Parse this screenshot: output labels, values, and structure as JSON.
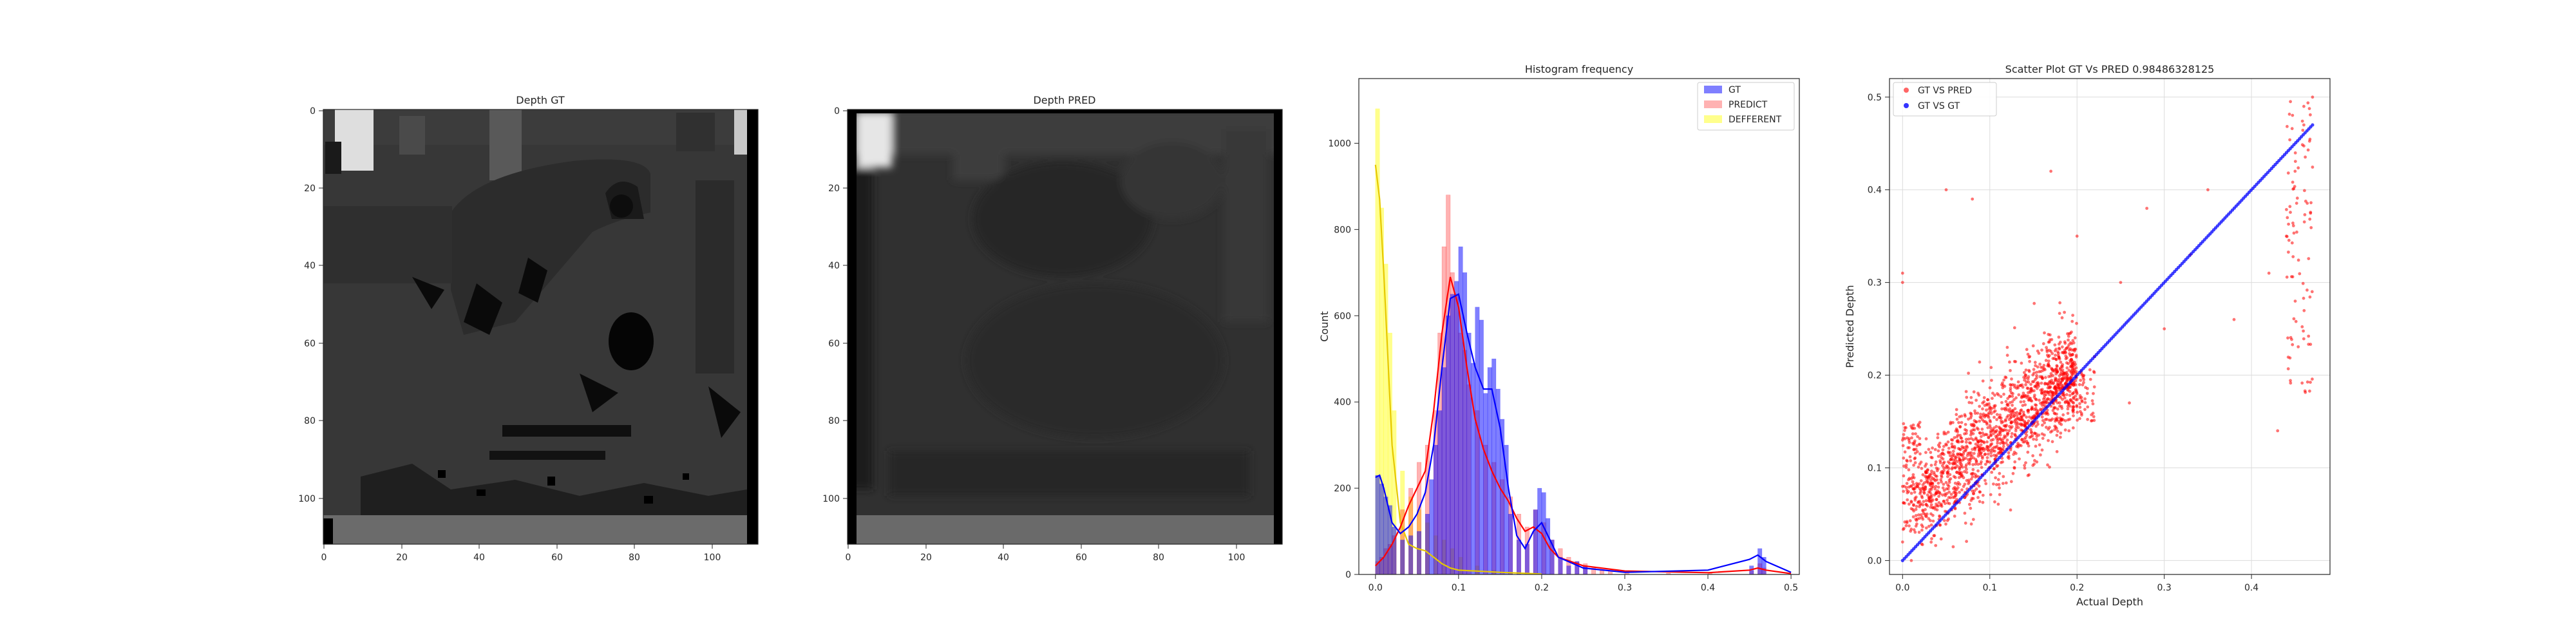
{
  "figure": {
    "panels": [
      "Depth GT",
      "Depth PRED",
      "Histogram frequency",
      "Scatter Plot GT Vs PRED 0.98486328125"
    ]
  },
  "chart_data": [
    {
      "type": "heatmap",
      "title": "Depth GT",
      "colormap": "gray",
      "xlim": [
        0,
        112
      ],
      "ylim": [
        112,
        0
      ],
      "xticks": [
        "0",
        "20",
        "40",
        "60",
        "80",
        "100"
      ],
      "yticks": [
        "0",
        "20",
        "40",
        "60",
        "80",
        "100"
      ],
      "regions": [
        {
          "name": "background",
          "value": 0.14
        },
        {
          "name": "bright-upper-left",
          "value": 0.46
        },
        {
          "name": "top-band",
          "value": 0.22
        },
        {
          "name": "center-object",
          "value": 0.17
        },
        {
          "name": "bottom-floor",
          "value": 0.27
        },
        {
          "name": "missing-depth",
          "value": 0.0
        }
      ]
    },
    {
      "type": "heatmap",
      "title": "Depth PRED",
      "colormap": "gray",
      "xlim": [
        0,
        112
      ],
      "ylim": [
        112,
        0
      ],
      "xticks": [
        "0",
        "20",
        "40",
        "60",
        "80",
        "100"
      ],
      "yticks": [
        "0",
        "20",
        "40",
        "60",
        "80",
        "100"
      ],
      "regions": [
        {
          "name": "background",
          "value": 0.12
        },
        {
          "name": "bright-upper-left",
          "value": 0.45
        },
        {
          "name": "bottom-floor",
          "value": 0.27
        }
      ]
    },
    {
      "type": "bar",
      "title": "Histogram frequency",
      "xlabel": "",
      "ylabel": "Count",
      "xlim": [
        -0.02,
        0.51
      ],
      "ylim": [
        0,
        1150
      ],
      "xticks": [
        "0.0",
        "0.1",
        "0.2",
        "0.3",
        "0.4",
        "0.5"
      ],
      "yticks": [
        "0",
        "200",
        "400",
        "600",
        "800",
        "1000"
      ],
      "bin_width": 0.005,
      "legend_position": "top-right",
      "series": [
        {
          "name": "GT",
          "color": "#0000ff",
          "bins_x": [
            0.0,
            0.005,
            0.01,
            0.015,
            0.02,
            0.03,
            0.04,
            0.05,
            0.06,
            0.065,
            0.07,
            0.075,
            0.08,
            0.085,
            0.09,
            0.095,
            0.1,
            0.105,
            0.11,
            0.115,
            0.12,
            0.125,
            0.13,
            0.135,
            0.14,
            0.145,
            0.15,
            0.155,
            0.16,
            0.17,
            0.18,
            0.19,
            0.195,
            0.2,
            0.205,
            0.21,
            0.22,
            0.23,
            0.24,
            0.25,
            0.45,
            0.46,
            0.465
          ],
          "counts": [
            230,
            210,
            180,
            160,
            110,
            80,
            90,
            100,
            140,
            220,
            300,
            380,
            480,
            600,
            650,
            680,
            760,
            700,
            560,
            490,
            620,
            590,
            420,
            480,
            500,
            430,
            360,
            300,
            140,
            80,
            70,
            150,
            200,
            190,
            130,
            80,
            40,
            20,
            30,
            20,
            20,
            60,
            40
          ],
          "kde": [
            [
              0,
              225
            ],
            [
              0.005,
              230
            ],
            [
              0.01,
              200
            ],
            [
              0.02,
              120
            ],
            [
              0.03,
              95
            ],
            [
              0.04,
              110
            ],
            [
              0.05,
              140
            ],
            [
              0.06,
              190
            ],
            [
              0.07,
              300
            ],
            [
              0.08,
              480
            ],
            [
              0.09,
              640
            ],
            [
              0.1,
              650
            ],
            [
              0.11,
              560
            ],
            [
              0.12,
              480
            ],
            [
              0.13,
              430
            ],
            [
              0.14,
              430
            ],
            [
              0.15,
              340
            ],
            [
              0.16,
              200
            ],
            [
              0.17,
              90
            ],
            [
              0.18,
              60
            ],
            [
              0.19,
              100
            ],
            [
              0.2,
              120
            ],
            [
              0.21,
              80
            ],
            [
              0.22,
              40
            ],
            [
              0.25,
              15
            ],
            [
              0.3,
              5
            ],
            [
              0.4,
              10
            ],
            [
              0.45,
              35
            ],
            [
              0.46,
              45
            ],
            [
              0.47,
              30
            ],
            [
              0.5,
              5
            ]
          ]
        },
        {
          "name": "PREDICT",
          "color": "#ff0000",
          "bins_x": [
            0.0,
            0.005,
            0.01,
            0.015,
            0.02,
            0.03,
            0.04,
            0.05,
            0.06,
            0.07,
            0.075,
            0.08,
            0.085,
            0.09,
            0.095,
            0.1,
            0.105,
            0.11,
            0.12,
            0.13,
            0.14,
            0.15,
            0.16,
            0.17,
            0.18,
            0.19,
            0.2,
            0.21,
            0.22,
            0.23,
            0.24,
            0.25,
            0.26,
            0.27,
            0.28,
            0.3,
            0.35,
            0.4,
            0.45,
            0.46,
            0.465
          ],
          "counts": [
            30,
            40,
            60,
            70,
            90,
            150,
            200,
            260,
            300,
            380,
            560,
            760,
            880,
            700,
            650,
            560,
            520,
            440,
            380,
            300,
            260,
            220,
            180,
            140,
            110,
            150,
            120,
            80,
            60,
            40,
            30,
            25,
            15,
            10,
            8,
            5,
            3,
            3,
            8,
            25,
            15
          ],
          "kde": [
            [
              0,
              20
            ],
            [
              0.01,
              40
            ],
            [
              0.02,
              70
            ],
            [
              0.03,
              110
            ],
            [
              0.04,
              160
            ],
            [
              0.05,
              200
            ],
            [
              0.06,
              240
            ],
            [
              0.07,
              380
            ],
            [
              0.08,
              560
            ],
            [
              0.09,
              690
            ],
            [
              0.1,
              620
            ],
            [
              0.11,
              480
            ],
            [
              0.12,
              360
            ],
            [
              0.13,
              290
            ],
            [
              0.14,
              240
            ],
            [
              0.15,
              200
            ],
            [
              0.16,
              170
            ],
            [
              0.17,
              130
            ],
            [
              0.18,
              100
            ],
            [
              0.19,
              110
            ],
            [
              0.2,
              95
            ],
            [
              0.21,
              60
            ],
            [
              0.22,
              40
            ],
            [
              0.25,
              20
            ],
            [
              0.3,
              8
            ],
            [
              0.4,
              4
            ],
            [
              0.45,
              10
            ],
            [
              0.46,
              15
            ],
            [
              0.47,
              10
            ],
            [
              0.5,
              2
            ]
          ]
        },
        {
          "name": "DEFFERENT",
          "color": "#ffff00",
          "bins_x": [
            0.0,
            0.005,
            0.01,
            0.015,
            0.02,
            0.03,
            0.04,
            0.05,
            0.06,
            0.07,
            0.08,
            0.09,
            0.1,
            0.12,
            0.14,
            0.16
          ],
          "counts": [
            1080,
            850,
            720,
            560,
            380,
            240,
            180,
            150,
            120,
            90,
            80,
            60,
            40,
            20,
            10,
            5
          ],
          "kde": [
            [
              0,
              950
            ],
            [
              0.005,
              870
            ],
            [
              0.01,
              700
            ],
            [
              0.015,
              500
            ],
            [
              0.02,
              300
            ],
            [
              0.03,
              120
            ],
            [
              0.04,
              70
            ],
            [
              0.05,
              60
            ],
            [
              0.06,
              55
            ],
            [
              0.07,
              40
            ],
            [
              0.08,
              25
            ],
            [
              0.09,
              15
            ],
            [
              0.1,
              10
            ],
            [
              0.15,
              5
            ],
            [
              0.2,
              1
            ]
          ]
        }
      ]
    },
    {
      "type": "scatter",
      "title": "Scatter Plot GT Vs PRED 0.98486328125",
      "xlabel": "Actual Depth",
      "ylabel": "Predicted Depth",
      "xlim": [
        -0.015,
        0.49
      ],
      "ylim": [
        -0.015,
        0.52
      ],
      "xticks": [
        "0.0",
        "0.1",
        "0.2",
        "0.3",
        "0.4"
      ],
      "yticks": [
        "0.0",
        "0.1",
        "0.2",
        "0.3",
        "0.4",
        "0.5"
      ],
      "grid": true,
      "legend_position": "top-left",
      "series": [
        {
          "name": "GT VS PRED",
          "color": "#ff0000",
          "description_points": [
            [
              0.0,
              0.08
            ],
            [
              0.0,
              0.02
            ],
            [
              0.0,
              0.13
            ],
            [
              0.02,
              0.06
            ],
            [
              0.03,
              0.09
            ],
            [
              0.05,
              0.1
            ],
            [
              0.07,
              0.08
            ],
            [
              0.08,
              0.12
            ],
            [
              0.1,
              0.1
            ],
            [
              0.12,
              0.13
            ],
            [
              0.14,
              0.15
            ],
            [
              0.16,
              0.17
            ],
            [
              0.18,
              0.19
            ],
            [
              0.2,
              0.18
            ],
            [
              0.05,
              0.4
            ],
            [
              0.08,
              0.39
            ],
            [
              0.17,
              0.42
            ],
            [
              0.2,
              0.35
            ],
            [
              0.22,
              0.22
            ],
            [
              0.25,
              0.3
            ],
            [
              0.28,
              0.38
            ],
            [
              0.3,
              0.25
            ],
            [
              0.33,
              0.33
            ],
            [
              0.35,
              0.4
            ],
            [
              0.38,
              0.26
            ],
            [
              0.42,
              0.31
            ],
            [
              0.44,
              0.35
            ],
            [
              0.45,
              0.42
            ],
            [
              0.46,
              0.47
            ],
            [
              0.46,
              0.49
            ],
            [
              0.47,
              0.5
            ],
            [
              0.0,
              0.31
            ],
            [
              0.0,
              0.3
            ],
            [
              0.01,
              0.0
            ],
            [
              0.12,
              0.23
            ],
            [
              0.26,
              0.17
            ],
            [
              0.43,
              0.14
            ]
          ]
        },
        {
          "name": "GT VS GT",
          "color": "#0000ff",
          "relation": "y = x",
          "range": [
            0.0,
            0.47
          ]
        }
      ]
    }
  ]
}
